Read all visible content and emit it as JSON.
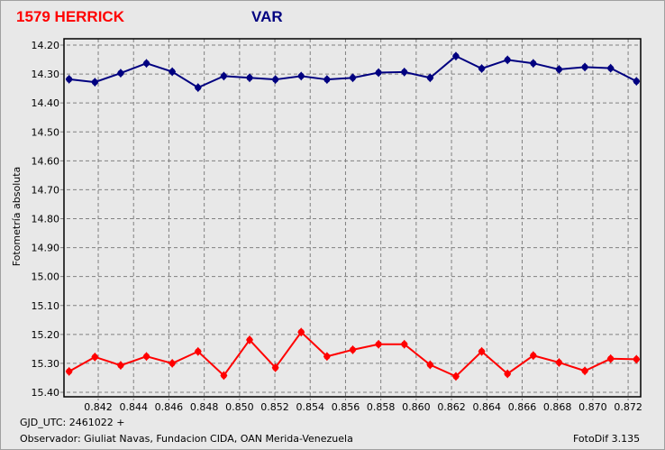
{
  "header": {
    "object_title": "1579 HERRICK",
    "series_label": "VAR",
    "object_color": "#ff0000",
    "var_color": "#000080"
  },
  "footer": {
    "gjd": "GJD_UTC: 2461022 +",
    "observer": "Observador: Giuliat Navas, Fundacion CIDA, OAN  Merida-Venezuela",
    "software": "FotoDif 3.135"
  },
  "chart_data": {
    "type": "line",
    "ylabel": "Fotometría absoluta",
    "xlabel": "",
    "xlim": [
      0.84006,
      0.87271
    ],
    "ylim": [
      14.2,
      15.4
    ],
    "y_inverted": true,
    "grid": true,
    "xticks": [
      "0.842",
      "0.844",
      "0.846",
      "0.848",
      "0.850",
      "0.852",
      "0.854",
      "0.856",
      "0.858",
      "0.860",
      "0.862",
      "0.864",
      "0.866",
      "0.868",
      "0.870",
      "0.872"
    ],
    "yticks": [
      "14.20",
      "14.30",
      "14.40",
      "14.50",
      "14.60",
      "14.70",
      "14.80",
      "14.90",
      "15.00",
      "15.10",
      "15.20",
      "15.30",
      "15.40"
    ],
    "x": [
      0.84035,
      0.84181,
      0.84327,
      0.84473,
      0.84619,
      0.84765,
      0.84911,
      0.85057,
      0.85203,
      0.85349,
      0.85495,
      0.85641,
      0.85787,
      0.85933,
      0.86079,
      0.86225,
      0.86371,
      0.86517,
      0.86663,
      0.86809,
      0.86955,
      0.87101,
      0.87247
    ],
    "series": [
      {
        "color": "#000080",
        "values": [
          14.318,
          14.328,
          14.297,
          14.263,
          14.292,
          14.347,
          14.307,
          14.313,
          14.319,
          14.307,
          14.319,
          14.313,
          14.295,
          14.293,
          14.313,
          14.238,
          14.281,
          14.251,
          14.263,
          14.284,
          14.276,
          14.28,
          14.325
        ]
      },
      {
        "color": "#ff0000",
        "values": [
          15.328,
          15.278,
          15.307,
          15.276,
          15.3,
          15.259,
          15.342,
          15.219,
          15.315,
          15.192,
          15.276,
          15.253,
          15.234,
          15.234,
          15.305,
          15.345,
          15.259,
          15.336,
          15.273,
          15.297,
          15.326,
          15.284,
          15.286
        ]
      }
    ]
  }
}
